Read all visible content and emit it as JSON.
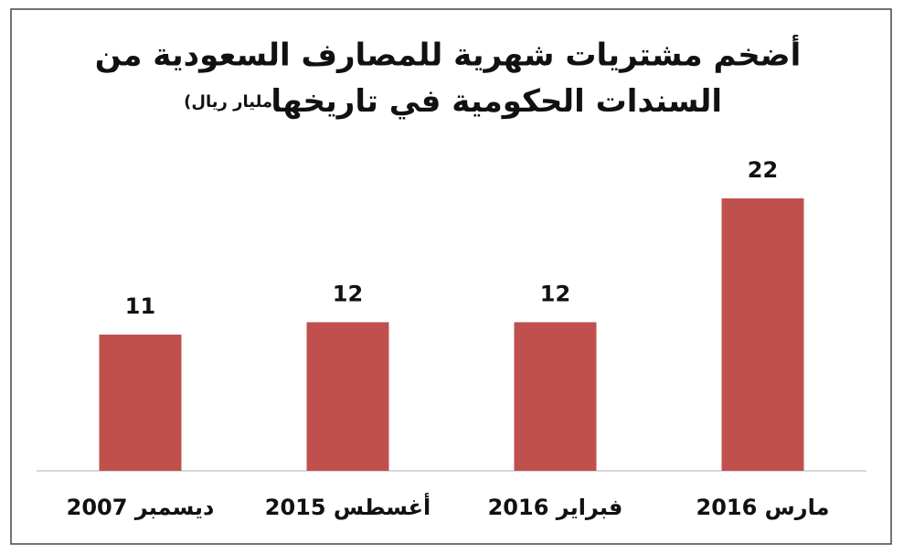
{
  "chart_data": {
    "type": "bar",
    "title": [
      "أضخم مشتريات شهرية للمصارف السعودية من",
      "السندات الحكومية في تاريخها"
    ],
    "subtitle": "(مليار ريال)",
    "categories": [
      "ديسمبر 2007",
      "أغسطس 2015",
      "فبراير 2016",
      "مارس 2016"
    ],
    "values": [
      11,
      12,
      12,
      22
    ],
    "color": "#c0504d"
  }
}
